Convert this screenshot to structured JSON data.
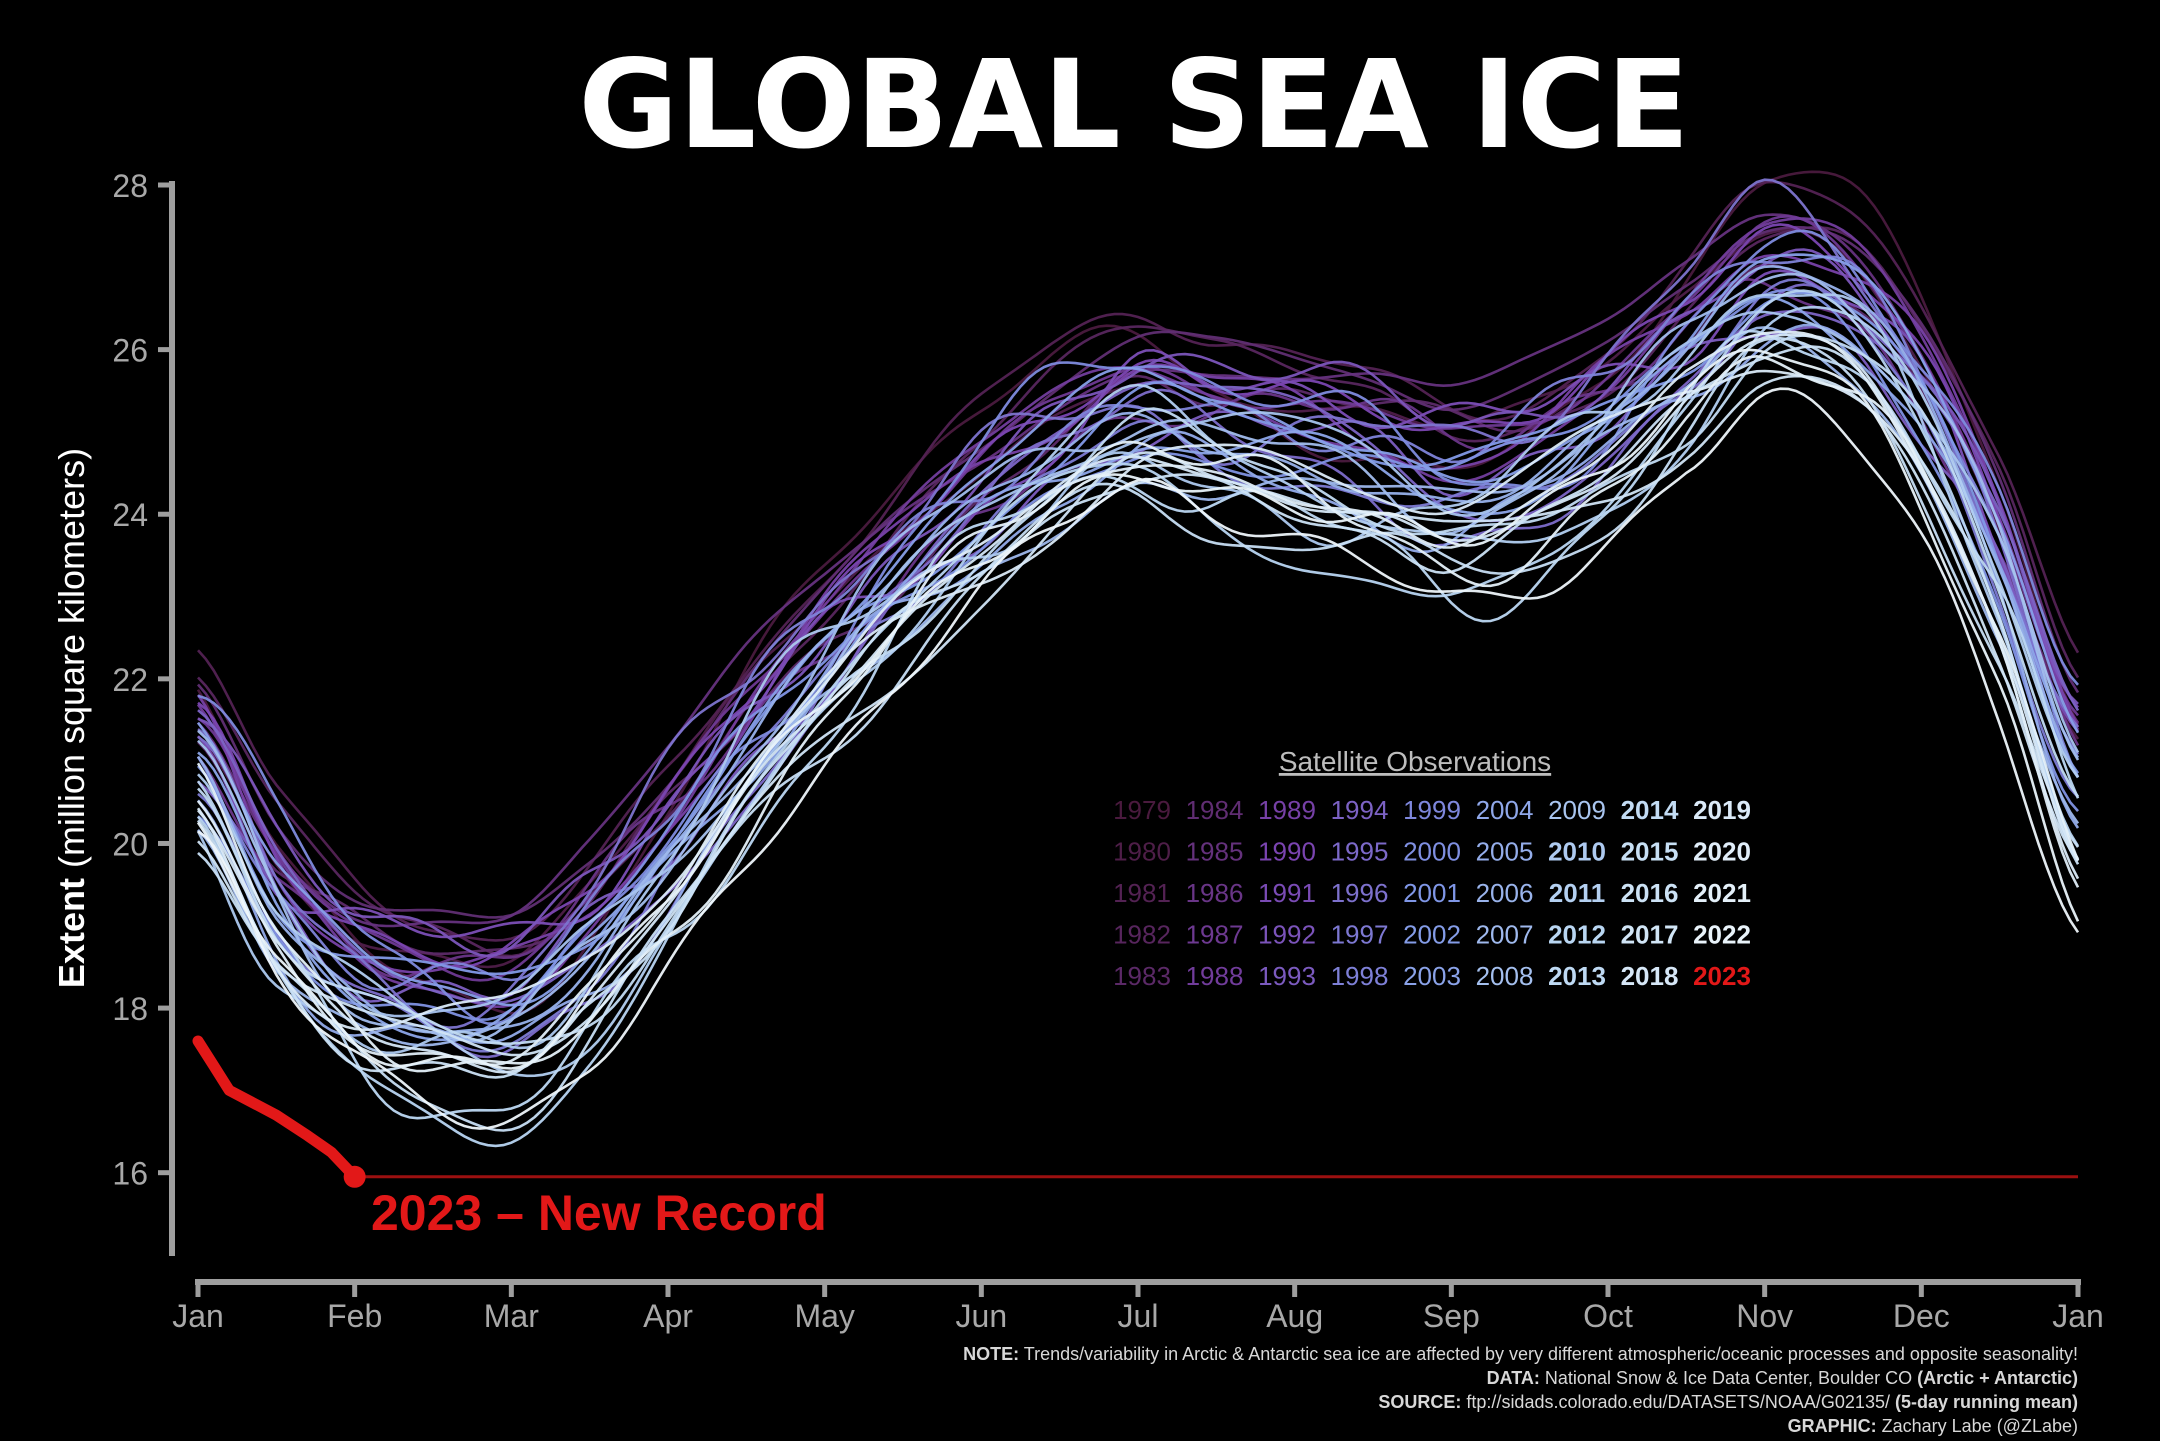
{
  "chart_data": {
    "type": "line",
    "title": "GLOBAL SEA ICE",
    "ylabel_bold": "Extent",
    "ylabel_rest": " (million square kilometers)",
    "ylim": [
      15,
      28
    ],
    "yticks": [
      "16",
      "18",
      "20",
      "22",
      "24",
      "26",
      "28"
    ],
    "xlim": [
      0,
      12
    ],
    "xticks": [
      "Jan",
      "Feb",
      "Mar",
      "Apr",
      "May",
      "Jun",
      "Jul",
      "Aug",
      "Sep",
      "Oct",
      "Nov",
      "Dec",
      "Jan"
    ],
    "colors": {
      "oldest": "#4a1a3e",
      "mid_purple": "#7a44b0",
      "blue": "#7f96e6",
      "light": "#b9d6f2",
      "newest": "#eef6fb",
      "record": "#e21818",
      "axis": "#9e9e9e"
    },
    "base_curve": {
      "month": [
        0,
        0.5,
        1,
        1.5,
        2,
        2.5,
        3,
        3.5,
        4,
        4.5,
        5,
        5.5,
        6,
        6.5,
        7,
        7.5,
        8,
        8.5,
        9,
        9.5,
        10,
        10.5,
        11,
        11.5,
        12
      ],
      "extent": [
        21.0,
        19.3,
        18.3,
        17.9,
        17.8,
        18.6,
        19.8,
        21.1,
        22.2,
        23.2,
        24.1,
        24.8,
        25.2,
        24.9,
        24.7,
        24.5,
        24.2,
        24.4,
        25.0,
        25.9,
        26.8,
        26.6,
        25.4,
        23.4,
        20.9
      ]
    },
    "series_2023": {
      "name": "2023",
      "month": [
        0,
        0.1,
        0.2,
        0.35,
        0.5,
        0.7,
        0.85,
        1.0
      ],
      "extent": [
        17.6,
        17.3,
        17.0,
        16.85,
        16.7,
        16.45,
        16.25,
        15.95
      ]
    },
    "record_line_value": 15.95,
    "annotation": "2023 – New Record",
    "legend": {
      "title": "Satellite Observations",
      "placement": "center-right",
      "columns": [
        [
          "1979",
          "1980",
          "1981",
          "1982",
          "1983"
        ],
        [
          "1984",
          "1985",
          "1986",
          "1987",
          "1988"
        ],
        [
          "1989",
          "1990",
          "1991",
          "1992",
          "1993"
        ],
        [
          "1994",
          "1995",
          "1996",
          "1997",
          "1998"
        ],
        [
          "1999",
          "2000",
          "2001",
          "2002",
          "2003"
        ],
        [
          "2004",
          "2005",
          "2006",
          "2007",
          "2008"
        ],
        [
          "2009",
          "2010",
          "2011",
          "2012",
          "2013"
        ],
        [
          "2014",
          "2015",
          "2016",
          "2017",
          "2018"
        ],
        [
          "2019",
          "2020",
          "2021",
          "2022",
          "2023"
        ]
      ]
    }
  },
  "footer": {
    "note_label": "NOTE:",
    "note_text": "Trends/variability in Arctic & Antarctic sea ice are affected by very different atmospheric/oceanic processes and opposite seasonality!",
    "data_label": "DATA:",
    "data_text": "National Snow & Ice Data Center, Boulder CO",
    "data_bold": "(Arctic + Antarctic)",
    "source_label": "SOURCE:",
    "source_text": "ftp://sidads.colorado.edu/DATASETS/NOAA/G02135/",
    "source_bold": "(5-day running mean)",
    "graphic_label": "GRAPHIC:",
    "graphic_text": "Zachary Labe (@ZLabe)"
  }
}
